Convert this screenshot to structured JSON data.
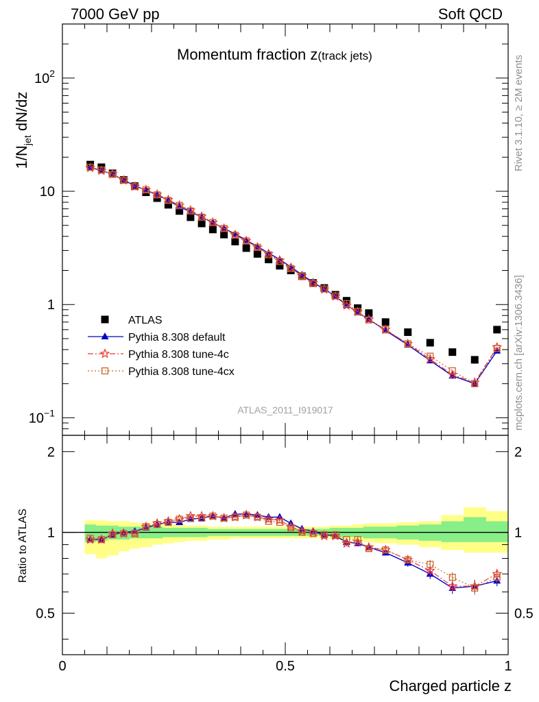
{
  "header": {
    "left": "7000 GeV pp",
    "right": "Soft QCD"
  },
  "side_text": {
    "rivet": "Rivet 3.1.10, ≥ 2M events",
    "mcplots": "mcplots.cern.ch [arXiv:1306.3436]"
  },
  "watermark": "ATLAS_2011_I919017",
  "chart_data": [
    {
      "type": "scatter",
      "panel": "main",
      "title": "Momentum fraction z(track jets)",
      "title_main": "Momentum fraction z",
      "title_sub": "(track jets)",
      "ylabel": "1/N_jet dN/dz",
      "ylabel_parts": {
        "prefix": "1/N",
        "sub": "jet",
        "suffix": " dN/dz"
      },
      "xlim": [
        0,
        1
      ],
      "ylim": [
        0.07,
        300
      ],
      "log_y": true,
      "y_ticks": [
        {
          "value": 0.1,
          "base": "10",
          "exp": "−1"
        },
        {
          "value": 1,
          "label": "1"
        },
        {
          "value": 10,
          "label": "10"
        },
        {
          "value": 100,
          "base": "10",
          "exp": "2"
        }
      ],
      "legend_position": "center-left",
      "x": [
        0.0625,
        0.0875,
        0.1125,
        0.1375,
        0.1625,
        0.1875,
        0.2125,
        0.2375,
        0.2625,
        0.2875,
        0.3125,
        0.3375,
        0.3625,
        0.3875,
        0.4125,
        0.4375,
        0.4625,
        0.4875,
        0.5125,
        0.5375,
        0.5625,
        0.5875,
        0.6125,
        0.6375,
        0.6625,
        0.6875,
        0.725,
        0.775,
        0.825,
        0.875,
        0.925,
        0.975
      ],
      "series": [
        {
          "name": "ATLAS",
          "marker": "square",
          "color": "#000000",
          "values": [
            17.2,
            16.3,
            14.4,
            12.6,
            11.1,
            9.8,
            8.7,
            7.6,
            6.7,
            5.9,
            5.2,
            4.6,
            4.15,
            3.6,
            3.15,
            2.8,
            2.5,
            2.2,
            2.0,
            1.78,
            1.55,
            1.4,
            1.22,
            1.08,
            0.93,
            0.84,
            0.7,
            0.57,
            0.46,
            0.38,
            0.325,
            0.6
          ]
        },
        {
          "name": "Pythia 8.308 default",
          "marker": "triangle",
          "color": "#0000cc",
          "line": "solid",
          "values": [
            16.2,
            15.3,
            14.1,
            12.6,
            11.2,
            10.2,
            9.3,
            8.3,
            7.3,
            6.6,
            5.9,
            5.3,
            4.7,
            4.2,
            3.7,
            3.25,
            2.85,
            2.5,
            2.15,
            1.83,
            1.57,
            1.37,
            1.18,
            0.99,
            0.85,
            0.74,
            0.59,
            0.44,
            0.32,
            0.235,
            0.2,
            0.39
          ]
        },
        {
          "name": "Pythia 8.308 tune-4c",
          "marker": "star",
          "color": "#ee3333",
          "line": "dashdot",
          "values": [
            16.1,
            15.2,
            14.2,
            12.5,
            11.0,
            10.3,
            9.4,
            8.4,
            7.5,
            6.8,
            6.0,
            5.3,
            4.7,
            4.1,
            3.65,
            3.2,
            2.8,
            2.45,
            2.1,
            1.79,
            1.55,
            1.36,
            1.18,
            0.98,
            0.86,
            0.74,
            0.6,
            0.45,
            0.33,
            0.24,
            0.205,
            0.42
          ]
        },
        {
          "name": "Pythia 8.308 tune-4cx",
          "marker": "open-square",
          "color": "#c8642d",
          "line": "dotted",
          "values": [
            16.3,
            15.4,
            14.1,
            12.5,
            11.0,
            10.3,
            9.3,
            8.3,
            7.5,
            6.7,
            5.9,
            5.3,
            4.7,
            4.1,
            3.65,
            3.2,
            2.75,
            2.4,
            2.08,
            1.78,
            1.53,
            1.37,
            1.19,
            1.02,
            0.87,
            0.73,
            0.6,
            0.45,
            0.35,
            0.26,
            0.2,
            0.41
          ]
        }
      ]
    },
    {
      "type": "scatter",
      "panel": "ratio",
      "ylabel": "Ratio to ATLAS",
      "xlabel": "Charged particle z",
      "xlim": [
        0,
        1
      ],
      "ylim": [
        0.35,
        2.3
      ],
      "log_y": true,
      "y_ticks": [
        0.5,
        1,
        2
      ],
      "x_ticks": [
        0,
        0.5,
        1
      ],
      "x_tick_labels": [
        "0",
        "0.5",
        "1"
      ],
      "reference_line": 1,
      "x": [
        0.0625,
        0.0875,
        0.1125,
        0.1375,
        0.1625,
        0.1875,
        0.2125,
        0.2375,
        0.2625,
        0.2875,
        0.3125,
        0.3375,
        0.3625,
        0.3875,
        0.4125,
        0.4375,
        0.4625,
        0.4875,
        0.5125,
        0.5375,
        0.5625,
        0.5875,
        0.6125,
        0.6375,
        0.6625,
        0.6875,
        0.725,
        0.775,
        0.825,
        0.875,
        0.925,
        0.975
      ],
      "bin_edges": [
        0.05,
        0.075,
        0.1,
        0.125,
        0.15,
        0.175,
        0.2,
        0.225,
        0.25,
        0.275,
        0.3,
        0.325,
        0.35,
        0.375,
        0.4,
        0.425,
        0.45,
        0.475,
        0.5,
        0.525,
        0.55,
        0.575,
        0.6,
        0.625,
        0.65,
        0.675,
        0.7,
        0.75,
        0.8,
        0.85,
        0.9,
        0.95,
        1.0
      ],
      "band_inner": {
        "color": "#88ee88",
        "lo": [
          0.92,
          0.93,
          0.94,
          0.94,
          0.95,
          0.95,
          0.95,
          0.96,
          0.96,
          0.96,
          0.96,
          0.97,
          0.97,
          0.97,
          0.97,
          0.97,
          0.97,
          0.97,
          0.97,
          0.97,
          0.97,
          0.97,
          0.96,
          0.96,
          0.96,
          0.95,
          0.95,
          0.94,
          0.93,
          0.92,
          0.92,
          0.92
        ],
        "hi": [
          1.07,
          1.06,
          1.06,
          1.05,
          1.05,
          1.05,
          1.05,
          1.04,
          1.04,
          1.04,
          1.04,
          1.03,
          1.03,
          1.03,
          1.03,
          1.03,
          1.03,
          1.03,
          1.03,
          1.03,
          1.03,
          1.03,
          1.04,
          1.04,
          1.04,
          1.05,
          1.05,
          1.06,
          1.07,
          1.1,
          1.14,
          1.1
        ]
      },
      "band_outer": {
        "color": "#ffff88",
        "lo": [
          0.83,
          0.8,
          0.82,
          0.85,
          0.87,
          0.88,
          0.9,
          0.91,
          0.92,
          0.93,
          0.93,
          0.94,
          0.94,
          0.95,
          0.95,
          0.95,
          0.95,
          0.95,
          0.95,
          0.95,
          0.95,
          0.95,
          0.94,
          0.94,
          0.93,
          0.92,
          0.91,
          0.9,
          0.88,
          0.86,
          0.84,
          0.84
        ],
        "hi": [
          1.11,
          1.11,
          1.1,
          1.1,
          1.09,
          1.08,
          1.08,
          1.07,
          1.07,
          1.06,
          1.06,
          1.05,
          1.05,
          1.05,
          1.05,
          1.05,
          1.05,
          1.05,
          1.05,
          1.05,
          1.05,
          1.05,
          1.06,
          1.06,
          1.07,
          1.08,
          1.08,
          1.09,
          1.1,
          1.16,
          1.24,
          1.2
        ]
      },
      "series": [
        {
          "name": "Pythia 8.308 default",
          "marker": "triangle",
          "color": "#0000cc",
          "line": "solid",
          "values": [
            0.94,
            0.94,
            0.98,
            1.0,
            1.01,
            1.04,
            1.07,
            1.09,
            1.09,
            1.12,
            1.13,
            1.15,
            1.13,
            1.17,
            1.17,
            1.16,
            1.14,
            1.14,
            1.08,
            1.03,
            1.01,
            0.98,
            0.97,
            0.92,
            0.91,
            0.88,
            0.84,
            0.77,
            0.7,
            0.62,
            0.63,
            0.66
          ],
          "err": [
            0.01,
            0.01,
            0.01,
            0.01,
            0.01,
            0.01,
            0.01,
            0.01,
            0.01,
            0.01,
            0.01,
            0.01,
            0.01,
            0.01,
            0.01,
            0.01,
            0.01,
            0.01,
            0.01,
            0.01,
            0.01,
            0.01,
            0.015,
            0.015,
            0.02,
            0.02,
            0.02,
            0.025,
            0.03,
            0.03,
            0.035,
            0.03
          ]
        },
        {
          "name": "Pythia 8.308 tune-4c",
          "marker": "star",
          "color": "#ee3333",
          "line": "dashdot",
          "values": [
            0.94,
            0.94,
            0.99,
            0.99,
            0.99,
            1.05,
            1.08,
            1.1,
            1.12,
            1.15,
            1.15,
            1.15,
            1.13,
            1.14,
            1.16,
            1.14,
            1.12,
            1.11,
            1.05,
            1.01,
            1.0,
            0.97,
            0.97,
            0.91,
            0.92,
            0.88,
            0.86,
            0.79,
            0.72,
            0.63,
            0.63,
            0.7
          ],
          "err": [
            0.01,
            0.01,
            0.01,
            0.01,
            0.01,
            0.01,
            0.01,
            0.01,
            0.01,
            0.01,
            0.01,
            0.01,
            0.01,
            0.01,
            0.01,
            0.01,
            0.01,
            0.01,
            0.01,
            0.01,
            0.01,
            0.01,
            0.015,
            0.015,
            0.02,
            0.02,
            0.02,
            0.025,
            0.03,
            0.03,
            0.035,
            0.03
          ]
        },
        {
          "name": "Pythia 8.308 tune-4cx",
          "marker": "open-square",
          "color": "#c8642d",
          "line": "dotted",
          "values": [
            0.95,
            0.94,
            0.98,
            0.99,
            0.99,
            1.05,
            1.07,
            1.09,
            1.12,
            1.13,
            1.13,
            1.15,
            1.13,
            1.14,
            1.16,
            1.14,
            1.1,
            1.09,
            1.04,
            1.0,
            0.99,
            0.98,
            0.98,
            0.94,
            0.94,
            0.87,
            0.86,
            0.79,
            0.76,
            0.68,
            0.62,
            0.68
          ],
          "err": [
            0.01,
            0.01,
            0.01,
            0.01,
            0.01,
            0.01,
            0.01,
            0.01,
            0.01,
            0.01,
            0.01,
            0.01,
            0.01,
            0.01,
            0.01,
            0.01,
            0.01,
            0.01,
            0.01,
            0.01,
            0.01,
            0.01,
            0.015,
            0.015,
            0.02,
            0.02,
            0.02,
            0.025,
            0.03,
            0.03,
            0.035,
            0.03
          ]
        }
      ]
    }
  ]
}
